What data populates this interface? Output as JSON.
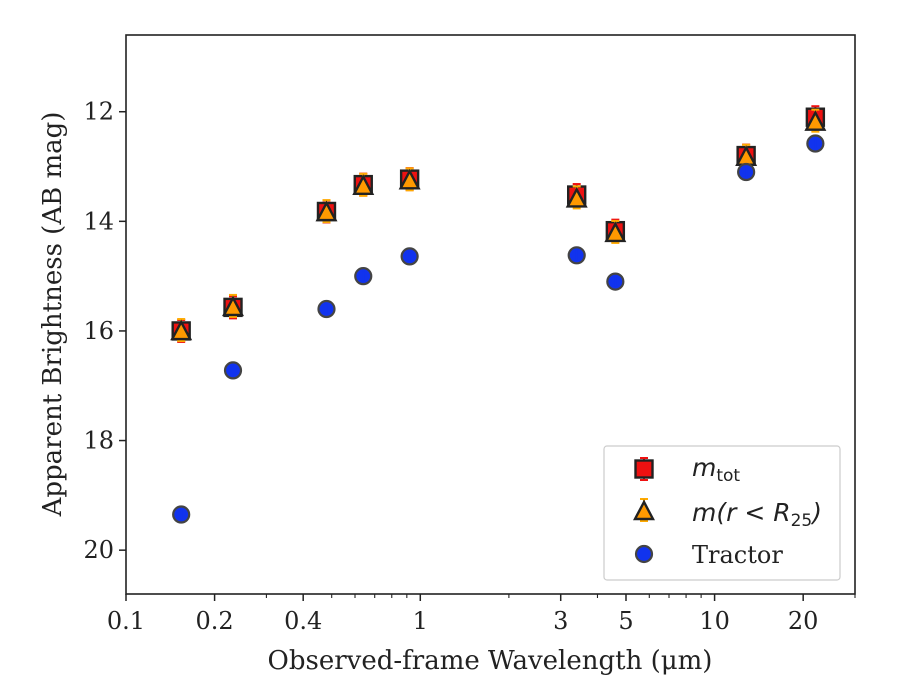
{
  "chart_data": {
    "type": "scatter",
    "xlabel": "Observed-frame Wavelength (μm)",
    "ylabel": "Apparent Brightness (AB mag)",
    "xscale": "log",
    "xlim": [
      0.1,
      30
    ],
    "ylim": [
      20.8,
      10.6
    ],
    "y_inverted": true,
    "grid": false,
    "legend_placement": "lower-right",
    "x_ticks": [
      {
        "value": 0.1,
        "label": "0.1"
      },
      {
        "value": 0.2,
        "label": "0.2"
      },
      {
        "value": 0.4,
        "label": "0.4"
      },
      {
        "value": 1,
        "label": "1"
      },
      {
        "value": 3,
        "label": "3"
      },
      {
        "value": 5,
        "label": "5"
      },
      {
        "value": 10,
        "label": "10"
      },
      {
        "value": 20,
        "label": "20"
      }
    ],
    "x_minor_ticks": [
      0.3,
      0.5,
      0.6,
      0.7,
      0.8,
      0.9,
      2,
      4,
      6,
      7,
      8,
      9,
      30
    ],
    "y_ticks": [
      {
        "value": 12,
        "label": "12"
      },
      {
        "value": 14,
        "label": "14"
      },
      {
        "value": 16,
        "label": "16"
      },
      {
        "value": 18,
        "label": "18"
      },
      {
        "value": 20,
        "label": "20"
      }
    ],
    "series": [
      {
        "name": "m_tot",
        "legend_main": "m",
        "legend_sub": "tot",
        "marker": "square",
        "color": "#ee1111",
        "errcolor": "#ee1111",
        "points": [
          {
            "x": 0.154,
            "y": 16.0
          },
          {
            "x": 0.231,
            "y": 15.57
          },
          {
            "x": 0.48,
            "y": 13.82
          },
          {
            "x": 0.64,
            "y": 13.33
          },
          {
            "x": 0.92,
            "y": 13.23
          },
          {
            "x": 3.4,
            "y": 13.52
          },
          {
            "x": 4.6,
            "y": 14.17
          },
          {
            "x": 12.8,
            "y": 12.8
          },
          {
            "x": 22.0,
            "y": 12.1
          }
        ]
      },
      {
        "name": "m(r < R_25)",
        "legend_main": "m(r < R",
        "legend_sub": "25",
        "legend_close": ")",
        "marker": "triangle",
        "color": "#ff9900",
        "errcolor": "#ffaa00",
        "points": [
          {
            "x": 0.154,
            "y": 16.02
          },
          {
            "x": 0.231,
            "y": 15.58
          },
          {
            "x": 0.48,
            "y": 13.85
          },
          {
            "x": 0.64,
            "y": 13.37
          },
          {
            "x": 0.92,
            "y": 13.27
          },
          {
            "x": 3.4,
            "y": 13.6
          },
          {
            "x": 4.6,
            "y": 14.23
          },
          {
            "x": 12.8,
            "y": 12.84
          },
          {
            "x": 22.0,
            "y": 12.2
          }
        ]
      },
      {
        "name": "Tractor",
        "legend_main": "Tractor",
        "marker": "circle",
        "color": "#1133ee",
        "errcolor": "#1133ee",
        "points": [
          {
            "x": 0.154,
            "y": 19.35
          },
          {
            "x": 0.231,
            "y": 16.72
          },
          {
            "x": 0.48,
            "y": 15.6
          },
          {
            "x": 0.64,
            "y": 15.0
          },
          {
            "x": 0.92,
            "y": 14.64
          },
          {
            "x": 3.4,
            "y": 14.62
          },
          {
            "x": 4.6,
            "y": 15.1
          },
          {
            "x": 12.8,
            "y": 13.1
          },
          {
            "x": 22.0,
            "y": 12.58
          }
        ]
      }
    ]
  }
}
